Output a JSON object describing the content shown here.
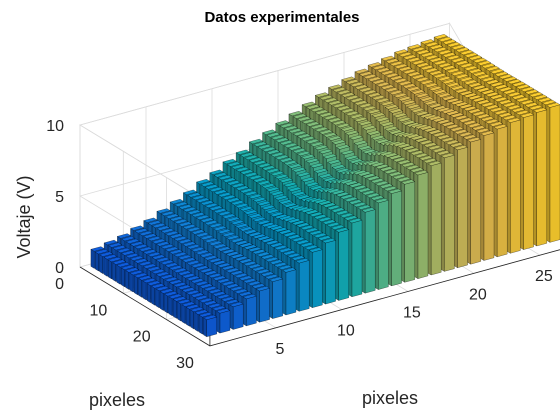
{
  "chart_data": {
    "type": "bar3",
    "title": "Datos experimentales",
    "xlabel": "pixeles",
    "ylabel": "pixeles",
    "zlabel": "Voltaje (V)",
    "x_ticks": [
      5,
      10,
      15,
      20,
      25
    ],
    "y_ticks": [
      0,
      10,
      20,
      30
    ],
    "z_ticks": [
      0,
      5,
      10
    ],
    "xlim": [
      0,
      28
    ],
    "ylim": [
      0,
      30
    ],
    "zlim": [
      0,
      10
    ],
    "grid": true,
    "colormap": "parula",
    "grid_size": {
      "x": 27,
      "y": 27
    },
    "description_of_surface": "bar heights rise from about 1 V at x=1 to about 9.5 V at x=27, with a local dip around y=14-16 for mid x values",
    "profile_along_x": [
      1.2,
      1.4,
      1.6,
      1.9,
      2.2,
      2.6,
      3.0,
      3.4,
      3.9,
      4.3,
      4.8,
      5.2,
      5.7,
      6.1,
      6.5,
      6.9,
      7.3,
      7.7,
      8.0,
      8.3,
      8.6,
      8.8,
      9.0,
      9.2,
      9.3,
      9.4,
      9.5
    ],
    "dip_center_y": 15,
    "dip_depth_fraction": 0.12
  }
}
